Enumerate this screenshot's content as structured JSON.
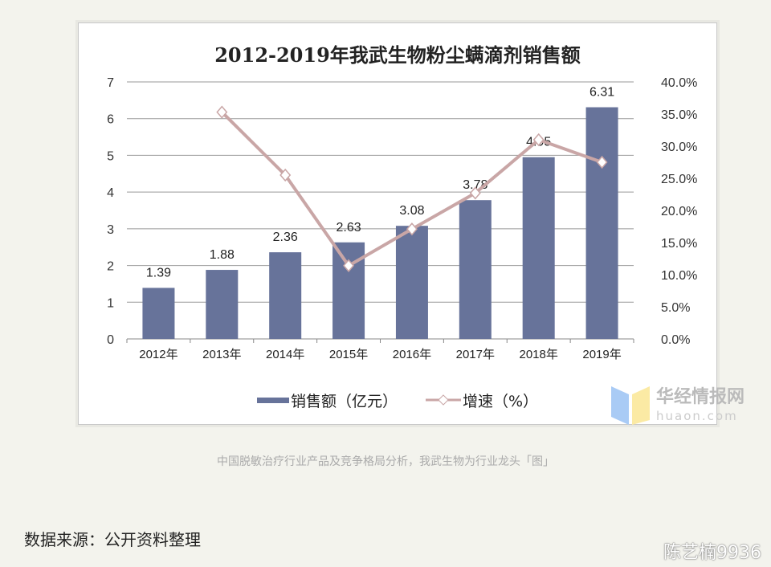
{
  "chart_data": {
    "type": "bar+line",
    "title": "2012-2019年我武生物粉尘螨滴剂销售额",
    "categories": [
      "2012年",
      "2013年",
      "2014年",
      "2015年",
      "2016年",
      "2017年",
      "2018年",
      "2019年"
    ],
    "series": [
      {
        "name": "销售额（亿元）",
        "type": "bar",
        "axis": "left",
        "values": [
          1.39,
          1.88,
          2.36,
          2.63,
          3.08,
          3.78,
          4.95,
          6.31
        ],
        "color": "#67739a"
      },
      {
        "name": "增速（%）",
        "type": "line",
        "axis": "right",
        "values": [
          null,
          35.3,
          25.5,
          11.4,
          17.1,
          22.7,
          31.0,
          27.5
        ],
        "color": "#c9a6a6"
      }
    ],
    "data_labels": [
      "1.39",
      "1.88",
      "2.36",
      "2.63",
      "3.08",
      "3.78",
      "4.95",
      "6.31"
    ],
    "ylim": [
      0,
      7
    ],
    "yticks": [
      "0",
      "1",
      "2",
      "3",
      "4",
      "5",
      "6",
      "7"
    ],
    "y2lim": [
      0,
      40
    ],
    "y2ticks": [
      "0.0%",
      "5.0%",
      "10.0%",
      "15.0%",
      "20.0%",
      "25.0%",
      "30.0%",
      "35.0%",
      "40.0%"
    ],
    "grid": true,
    "legend": "bottom"
  },
  "watermark_logo": {
    "cn": "华经情报网",
    "en": "huaon.com"
  },
  "caption": "中国脱敏治疗行业产品及竞争格局分析，我武生物为行业龙头「图」",
  "source": "数据来源：公开资料整理",
  "weibo_watermark": "陈艺楠9936"
}
